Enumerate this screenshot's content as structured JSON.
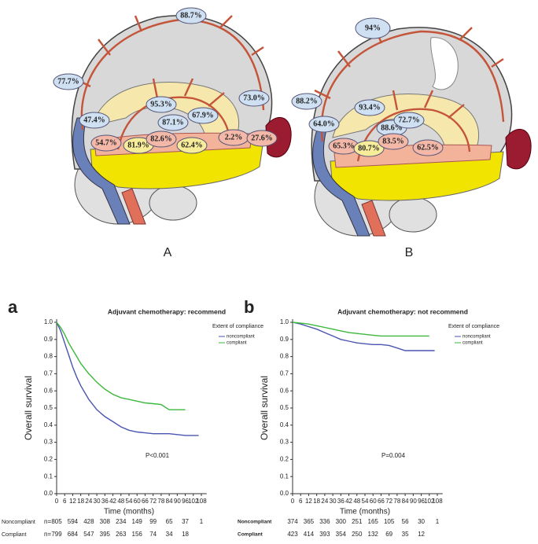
{
  "figures": [
    {
      "label": "A",
      "values": [
        "88.7%",
        "77.7%",
        "95.3%",
        "73.0%",
        "47.4%",
        "87.1%",
        "67.9%",
        "54.7%",
        "81.9%",
        "82.6%",
        "62.4%",
        "2.2%",
        "27.6%"
      ]
    },
    {
      "label": "B",
      "values": [
        "94%",
        "88.2%",
        "93.4%",
        "64.0%",
        "88.6%",
        "72.7%",
        "65.3%",
        "80.7%",
        "83.5%",
        "62.5%"
      ]
    }
  ],
  "chart_data": [
    {
      "type": "line",
      "panel": "a",
      "title": "Adjuvant chemotherapy: recommend",
      "xlabel": "Time (months)",
      "ylabel": "Overall survival",
      "annotation": "P<0.001",
      "legend_title": "Extent of compliance",
      "x": [
        0,
        3,
        6,
        9,
        12,
        15,
        18,
        21,
        24,
        30,
        36,
        42,
        48,
        54,
        60,
        66,
        72,
        78,
        84,
        90,
        96,
        102,
        106
      ],
      "series": [
        {
          "name": "noncompliant",
          "color": "#4a55b0",
          "values": [
            1.0,
            0.95,
            0.88,
            0.81,
            0.74,
            0.68,
            0.63,
            0.59,
            0.55,
            0.49,
            0.45,
            0.42,
            0.39,
            0.37,
            0.36,
            0.355,
            0.35,
            0.35,
            0.35,
            0.345,
            0.34,
            0.34,
            0.34
          ]
        },
        {
          "name": "compliant",
          "color": "#3cb83c",
          "values": [
            1.0,
            0.97,
            0.93,
            0.88,
            0.84,
            0.8,
            0.76,
            0.73,
            0.7,
            0.65,
            0.61,
            0.58,
            0.56,
            0.55,
            0.54,
            0.53,
            0.525,
            0.52,
            0.49,
            0.49,
            0.49,
            null,
            null
          ]
        }
      ],
      "xlim": [
        0,
        112
      ],
      "ylim": [
        0,
        1
      ],
      "xticks": [
        0,
        6,
        12,
        18,
        24,
        30,
        36,
        42,
        48,
        54,
        60,
        66,
        72,
        78,
        84,
        90,
        96,
        102,
        108
      ],
      "yticks": [
        {
          "value": 0,
          "label": "0.0"
        },
        0.1,
        0.2,
        0.3,
        0.4,
        0.5,
        0.6,
        0.7,
        0.8,
        0.9,
        {
          "value": 1,
          "label": "1.0"
        }
      ],
      "risk_table": {
        "rows": [
          {
            "label": "Noncompliant",
            "prefix": "n=",
            "counts": [
              805,
              594,
              428,
              308,
              234,
              149,
              99,
              65,
              37,
              1
            ]
          },
          {
            "label": "Compliant",
            "prefix": "n=",
            "counts": [
              799,
              684,
              547,
              395,
              263,
              156,
              74,
              34,
              18
            ]
          }
        ]
      }
    },
    {
      "type": "line",
      "panel": "b",
      "title": "Adjuvant chemotherapy: not recommend",
      "xlabel": "Time (months)",
      "ylabel": "Overall survival",
      "annotation": "P=0.004",
      "legend_title": "Extent of compliance",
      "x": [
        0,
        6,
        12,
        18,
        24,
        30,
        36,
        42,
        48,
        54,
        60,
        66,
        72,
        78,
        84,
        90,
        96,
        102,
        106
      ],
      "series": [
        {
          "name": "noncompliant",
          "color": "#4a55b0",
          "values": [
            1.0,
            0.99,
            0.975,
            0.96,
            0.94,
            0.92,
            0.9,
            0.89,
            0.88,
            0.875,
            0.87,
            0.87,
            0.865,
            0.85,
            0.835,
            0.835,
            0.835,
            0.835,
            0.835
          ]
        },
        {
          "name": "compliant",
          "color": "#3cb83c",
          "values": [
            1.0,
            0.995,
            0.99,
            0.98,
            0.97,
            0.96,
            0.95,
            0.94,
            0.935,
            0.93,
            0.925,
            0.92,
            0.92,
            0.92,
            0.92,
            0.92,
            0.92,
            0.92,
            null
          ]
        }
      ],
      "xlim": [
        0,
        112
      ],
      "ylim": [
        0,
        1
      ],
      "xticks": [
        0,
        6,
        12,
        18,
        24,
        30,
        36,
        42,
        48,
        54,
        60,
        66,
        72,
        78,
        84,
        90,
        96,
        102,
        108
      ],
      "yticks": [
        {
          "value": 0,
          "label": "0.0"
        },
        0.1,
        0.2,
        0.3,
        0.4,
        0.5,
        0.6,
        0.7,
        0.8,
        0.9,
        {
          "value": 1,
          "label": "1.0"
        }
      ],
      "risk_table": {
        "rows": [
          {
            "label": "Noncompliant",
            "counts": [
              374,
              365,
              336,
              300,
              251,
              165,
              105,
              56,
              30,
              1
            ]
          },
          {
            "label": "Compliant",
            "counts": [
              423,
              414,
              393,
              354,
              250,
              132,
              69,
              35,
              12
            ]
          }
        ]
      }
    }
  ]
}
